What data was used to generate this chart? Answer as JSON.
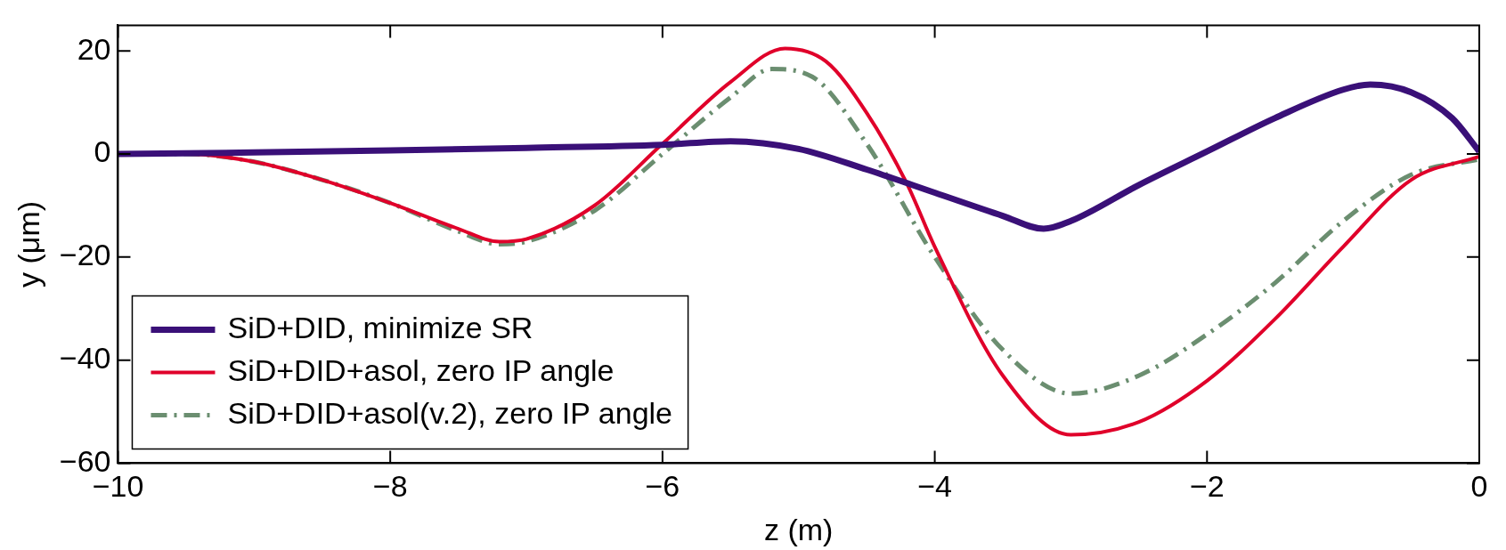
{
  "chart_data": {
    "type": "line",
    "xlabel": "z (m)",
    "ylabel": "y (μm)",
    "xlim": [
      -10,
      0
    ],
    "xticks": [
      -10,
      -8,
      -6,
      -4,
      -2,
      0
    ],
    "ylim": [
      -60,
      25
    ],
    "yticks": [
      -60,
      -40,
      -20,
      0,
      20
    ],
    "grid": false,
    "legend": "bottom left",
    "marker": "none",
    "series": [
      {
        "name": "SiD+DID, minimize SR",
        "color": "#3a1078",
        "line_style": "solid",
        "x": [
          -10,
          -9,
          -8,
          -7,
          -6,
          -5.5,
          -5,
          -4.5,
          -4,
          -3.5,
          -3.2,
          -3,
          -2.5,
          -2,
          -1.5,
          -1,
          -0.8,
          -0.5,
          -0.2,
          0
        ],
        "values": [
          0,
          0.3,
          0.7,
          1.2,
          1.8,
          2.5,
          1,
          -3,
          -7.5,
          -12,
          -14.5,
          -13,
          -6,
          0.5,
          7,
          12.5,
          13.5,
          12,
          7,
          0.5
        ]
      },
      {
        "name": "SiD+DID+asol, zero IP angle",
        "color": "#e0002a",
        "line_style": "solid",
        "x": [
          -10,
          -9.5,
          -9,
          -8.5,
          -8,
          -7.5,
          -7.2,
          -7,
          -6.5,
          -6,
          -5.5,
          -5.1,
          -4.8,
          -4.5,
          -4.2,
          -4,
          -3.5,
          -3,
          -2.5,
          -2,
          -1.5,
          -1,
          -0.5,
          0
        ],
        "values": [
          0,
          0,
          -1.5,
          -5,
          -9.5,
          -14.5,
          -17,
          -16.5,
          -10,
          2,
          14,
          20.5,
          18,
          8,
          -6,
          -18,
          -43,
          -54.5,
          -52,
          -44,
          -32,
          -18,
          -5,
          -0.5
        ]
      },
      {
        "name": "SiD+DID+asol(v.2), zero IP angle",
        "color": "#6b8e70",
        "line_style": "dashdot",
        "x": [
          -10,
          -9.5,
          -9,
          -8.5,
          -8,
          -7.5,
          -7.2,
          -7,
          -6.5,
          -6,
          -5.5,
          -5.2,
          -4.9,
          -4.5,
          -4,
          -3.5,
          -3,
          -2.5,
          -2,
          -1.5,
          -1,
          -0.5,
          0
        ],
        "values": [
          0,
          0,
          -1.5,
          -5,
          -9.5,
          -15,
          -17.5,
          -17,
          -11,
          0,
          11,
          16.5,
          15,
          2,
          -20,
          -38,
          -46.5,
          -43,
          -35,
          -25,
          -13,
          -4,
          -1
        ]
      }
    ]
  }
}
